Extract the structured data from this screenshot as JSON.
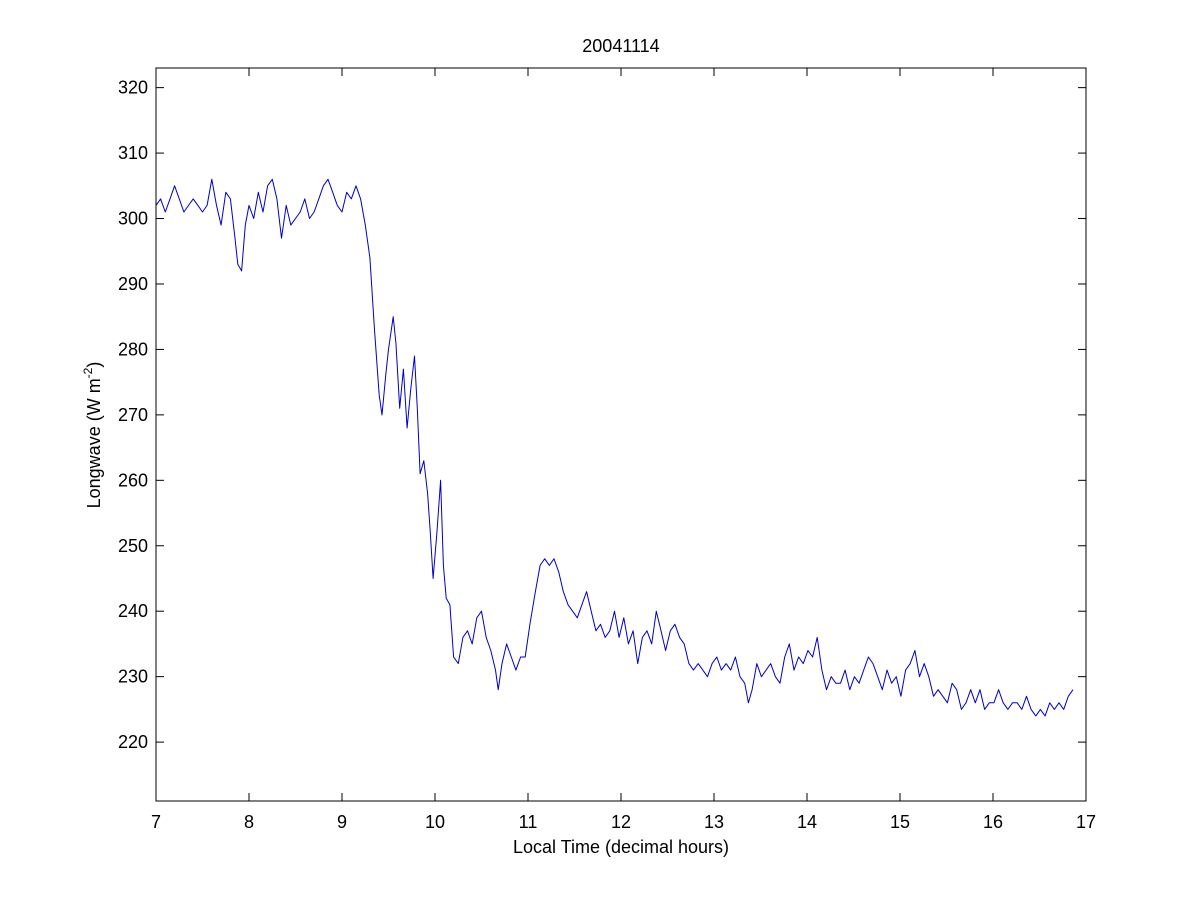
{
  "chart_data": {
    "type": "line",
    "title": "20041114",
    "xlabel": "Local Time (decimal hours)",
    "ylabel": {
      "text_before": "Longwave (W m",
      "superscript": "-2",
      "text_after": ")"
    },
    "xlim": [
      7,
      17
    ],
    "ylim": [
      211,
      323
    ],
    "xticks": [
      7,
      8,
      9,
      10,
      11,
      12,
      13,
      14,
      15,
      16,
      17
    ],
    "yticks": [
      220,
      230,
      240,
      250,
      260,
      270,
      280,
      290,
      300,
      310,
      320
    ],
    "grid": false,
    "line_color": "#0000c8",
    "series": [
      {
        "points": [
          [
            7.0,
            302
          ],
          [
            7.05,
            303
          ],
          [
            7.1,
            301
          ],
          [
            7.15,
            303
          ],
          [
            7.2,
            305
          ],
          [
            7.25,
            303
          ],
          [
            7.3,
            301
          ],
          [
            7.35,
            302
          ],
          [
            7.4,
            303
          ],
          [
            7.45,
            302
          ],
          [
            7.5,
            301
          ],
          [
            7.55,
            302
          ],
          [
            7.6,
            306
          ],
          [
            7.65,
            302
          ],
          [
            7.7,
            299
          ],
          [
            7.75,
            304
          ],
          [
            7.8,
            303
          ],
          [
            7.85,
            297
          ],
          [
            7.88,
            293
          ],
          [
            7.92,
            292
          ],
          [
            7.96,
            299
          ],
          [
            8.0,
            302
          ],
          [
            8.05,
            300
          ],
          [
            8.1,
            304
          ],
          [
            8.15,
            301
          ],
          [
            8.2,
            305
          ],
          [
            8.25,
            306
          ],
          [
            8.3,
            303
          ],
          [
            8.35,
            297
          ],
          [
            8.4,
            302
          ],
          [
            8.45,
            299
          ],
          [
            8.5,
            300
          ],
          [
            8.55,
            301
          ],
          [
            8.6,
            303
          ],
          [
            8.65,
            300
          ],
          [
            8.7,
            301
          ],
          [
            8.75,
            303
          ],
          [
            8.8,
            305
          ],
          [
            8.85,
            306
          ],
          [
            8.9,
            304
          ],
          [
            8.95,
            302
          ],
          [
            9.0,
            301
          ],
          [
            9.05,
            304
          ],
          [
            9.1,
            303
          ],
          [
            9.15,
            305
          ],
          [
            9.2,
            303
          ],
          [
            9.25,
            299
          ],
          [
            9.3,
            294
          ],
          [
            9.35,
            283
          ],
          [
            9.4,
            273
          ],
          [
            9.43,
            270
          ],
          [
            9.47,
            276
          ],
          [
            9.5,
            280
          ],
          [
            9.55,
            285
          ],
          [
            9.58,
            281
          ],
          [
            9.62,
            271
          ],
          [
            9.66,
            277
          ],
          [
            9.7,
            268
          ],
          [
            9.74,
            274
          ],
          [
            9.78,
            279
          ],
          [
            9.81,
            271
          ],
          [
            9.84,
            261
          ],
          [
            9.88,
            263
          ],
          [
            9.92,
            258
          ],
          [
            9.95,
            252
          ],
          [
            9.98,
            245
          ],
          [
            10.02,
            252
          ],
          [
            10.06,
            260
          ],
          [
            10.09,
            247
          ],
          [
            10.12,
            242
          ],
          [
            10.16,
            241
          ],
          [
            10.2,
            233
          ],
          [
            10.25,
            232
          ],
          [
            10.3,
            236
          ],
          [
            10.35,
            237
          ],
          [
            10.4,
            235
          ],
          [
            10.45,
            239
          ],
          [
            10.5,
            240
          ],
          [
            10.55,
            236
          ],
          [
            10.6,
            234
          ],
          [
            10.65,
            231
          ],
          [
            10.68,
            228
          ],
          [
            10.72,
            232
          ],
          [
            10.77,
            235
          ],
          [
            10.82,
            233
          ],
          [
            10.87,
            231
          ],
          [
            10.92,
            233
          ],
          [
            10.97,
            233
          ],
          [
            11.02,
            238
          ],
          [
            11.08,
            243
          ],
          [
            11.13,
            247
          ],
          [
            11.18,
            248
          ],
          [
            11.23,
            247
          ],
          [
            11.28,
            248
          ],
          [
            11.33,
            246
          ],
          [
            11.38,
            243
          ],
          [
            11.43,
            241
          ],
          [
            11.48,
            240
          ],
          [
            11.53,
            239
          ],
          [
            11.58,
            241
          ],
          [
            11.63,
            243
          ],
          [
            11.68,
            240
          ],
          [
            11.73,
            237
          ],
          [
            11.78,
            238
          ],
          [
            11.83,
            236
          ],
          [
            11.88,
            237
          ],
          [
            11.93,
            240
          ],
          [
            11.98,
            236
          ],
          [
            12.03,
            239
          ],
          [
            12.08,
            235
          ],
          [
            12.13,
            237
          ],
          [
            12.18,
            232
          ],
          [
            12.23,
            236
          ],
          [
            12.28,
            237
          ],
          [
            12.33,
            235
          ],
          [
            12.38,
            240
          ],
          [
            12.43,
            237
          ],
          [
            12.48,
            234
          ],
          [
            12.53,
            237
          ],
          [
            12.58,
            238
          ],
          [
            12.63,
            236
          ],
          [
            12.68,
            235
          ],
          [
            12.73,
            232
          ],
          [
            12.78,
            231
          ],
          [
            12.83,
            232
          ],
          [
            12.88,
            231
          ],
          [
            12.93,
            230
          ],
          [
            12.98,
            232
          ],
          [
            13.03,
            233
          ],
          [
            13.08,
            231
          ],
          [
            13.13,
            232
          ],
          [
            13.18,
            231
          ],
          [
            13.23,
            233
          ],
          [
            13.28,
            230
          ],
          [
            13.33,
            229
          ],
          [
            13.37,
            226
          ],
          [
            13.41,
            228
          ],
          [
            13.46,
            232
          ],
          [
            13.51,
            230
          ],
          [
            13.56,
            231
          ],
          [
            13.61,
            232
          ],
          [
            13.66,
            230
          ],
          [
            13.71,
            229
          ],
          [
            13.76,
            233
          ],
          [
            13.81,
            235
          ],
          [
            13.86,
            231
          ],
          [
            13.91,
            233
          ],
          [
            13.96,
            232
          ],
          [
            14.01,
            234
          ],
          [
            14.06,
            233
          ],
          [
            14.11,
            236
          ],
          [
            14.16,
            231
          ],
          [
            14.21,
            228
          ],
          [
            14.26,
            230
          ],
          [
            14.31,
            229
          ],
          [
            14.36,
            229
          ],
          [
            14.41,
            231
          ],
          [
            14.46,
            228
          ],
          [
            14.51,
            230
          ],
          [
            14.56,
            229
          ],
          [
            14.61,
            231
          ],
          [
            14.66,
            233
          ],
          [
            14.71,
            232
          ],
          [
            14.76,
            230
          ],
          [
            14.81,
            228
          ],
          [
            14.86,
            231
          ],
          [
            14.91,
            229
          ],
          [
            14.96,
            230
          ],
          [
            15.01,
            227
          ],
          [
            15.06,
            231
          ],
          [
            15.11,
            232
          ],
          [
            15.16,
            234
          ],
          [
            15.21,
            230
          ],
          [
            15.26,
            232
          ],
          [
            15.31,
            230
          ],
          [
            15.36,
            227
          ],
          [
            15.41,
            228
          ],
          [
            15.46,
            227
          ],
          [
            15.51,
            226
          ],
          [
            15.56,
            229
          ],
          [
            15.61,
            228
          ],
          [
            15.66,
            225
          ],
          [
            15.71,
            226
          ],
          [
            15.76,
            228
          ],
          [
            15.81,
            226
          ],
          [
            15.86,
            228
          ],
          [
            15.91,
            225
          ],
          [
            15.96,
            226
          ],
          [
            16.01,
            226
          ],
          [
            16.06,
            228
          ],
          [
            16.11,
            226
          ],
          [
            16.16,
            225
          ],
          [
            16.21,
            226
          ],
          [
            16.26,
            226
          ],
          [
            16.31,
            225
          ],
          [
            16.36,
            227
          ],
          [
            16.41,
            225
          ],
          [
            16.46,
            224
          ],
          [
            16.51,
            225
          ],
          [
            16.56,
            224
          ],
          [
            16.61,
            226
          ],
          [
            16.66,
            225
          ],
          [
            16.71,
            226
          ],
          [
            16.76,
            225
          ],
          [
            16.81,
            227
          ],
          [
            16.86,
            228
          ]
        ]
      }
    ]
  }
}
